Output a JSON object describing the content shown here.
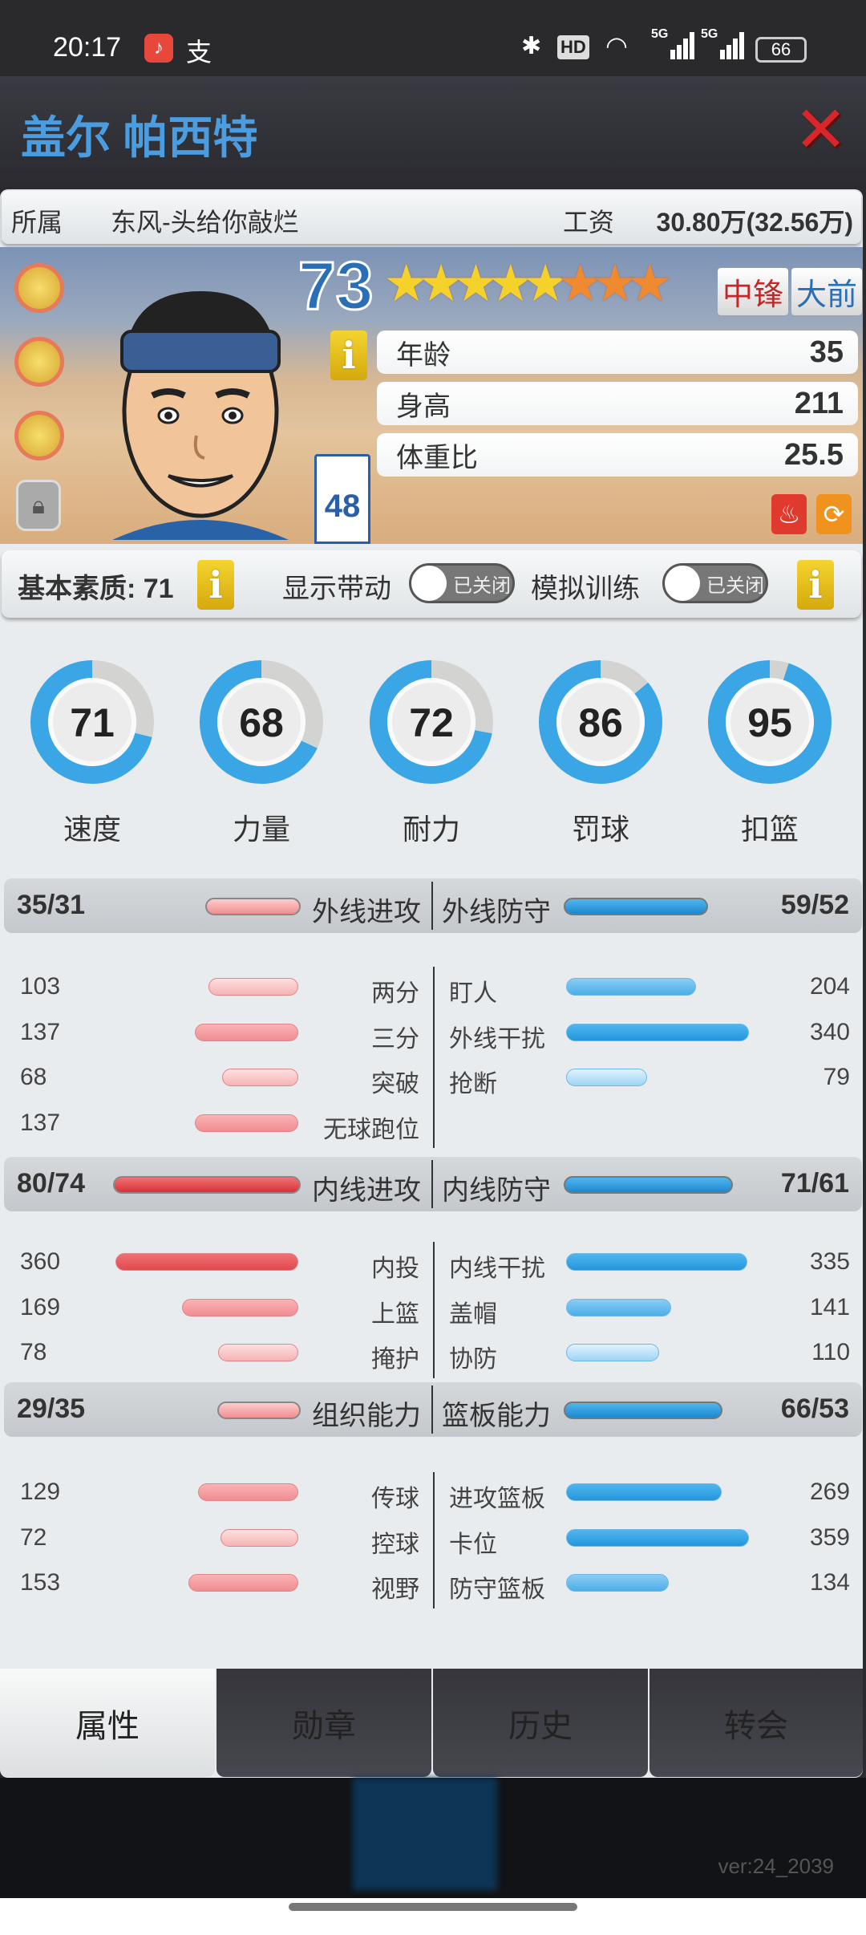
{
  "status_bar": {
    "time": "20:17",
    "battery": "66",
    "network1": "5G",
    "network2": "5G",
    "hd": "HD"
  },
  "header": {
    "title": "盖尔 帕西特",
    "close": "close-icon"
  },
  "info": {
    "team_label": "所属",
    "team": "东风-头给你敲烂",
    "salary_label": "工资",
    "salary": "30.80万(32.56万)"
  },
  "player": {
    "rating": "73",
    "stars": {
      "gold": 5,
      "orange": 3
    },
    "positions": [
      {
        "label": "中锋",
        "color": "#c0282a"
      },
      {
        "label": "大前",
        "color": "#2a6fb6"
      }
    ],
    "jersey_number": "48",
    "attributes": [
      {
        "label": "年龄",
        "value": "35"
      },
      {
        "label": "身高",
        "value": "211"
      },
      {
        "label": "体重比",
        "value": "25.5"
      }
    ]
  },
  "basic": {
    "label": "基本素质: 71",
    "show_drive_label": "显示带动",
    "show_drive_state": "已关闭",
    "sim_training_label": "模拟训练",
    "sim_training_state": "已关闭",
    "info_icon": "i"
  },
  "circles": [
    {
      "label": "速度",
      "value": 71
    },
    {
      "label": "力量",
      "value": 68
    },
    {
      "label": "耐力",
      "value": 72
    },
    {
      "label": "罚球",
      "value": 86
    },
    {
      "label": "扣篮",
      "value": 95
    }
  ],
  "sections": [
    {
      "left": {
        "title": "外线进攻",
        "value": "35/31",
        "level": 35
      },
      "right": {
        "title": "外线防守",
        "value": "59/52",
        "level": 59
      },
      "left_rows": [
        {
          "label": "两分",
          "value": 103
        },
        {
          "label": "三分",
          "value": 137
        },
        {
          "label": "突破",
          "value": 68
        },
        {
          "label": "无球跑位",
          "value": 137
        }
      ],
      "right_rows": [
        {
          "label": "盯人",
          "value": 204
        },
        {
          "label": "外线干扰",
          "value": 340
        },
        {
          "label": "抢断",
          "value": 79
        }
      ]
    },
    {
      "left": {
        "title": "内线进攻",
        "value": "80/74",
        "level": 80
      },
      "right": {
        "title": "内线防守",
        "value": "71/61",
        "level": 71
      },
      "left_rows": [
        {
          "label": "内投",
          "value": 360
        },
        {
          "label": "上篮",
          "value": 169
        },
        {
          "label": "掩护",
          "value": 78
        }
      ],
      "right_rows": [
        {
          "label": "内线干扰",
          "value": 335
        },
        {
          "label": "盖帽",
          "value": 141
        },
        {
          "label": "协防",
          "value": 110
        }
      ]
    },
    {
      "left": {
        "title": "组织能力",
        "value": "29/35",
        "level": 29
      },
      "right": {
        "title": "篮板能力",
        "value": "66/53",
        "level": 66
      },
      "left_rows": [
        {
          "label": "传球",
          "value": 129
        },
        {
          "label": "控球",
          "value": 72
        },
        {
          "label": "视野",
          "value": 153
        }
      ],
      "right_rows": [
        {
          "label": "进攻篮板",
          "value": 269
        },
        {
          "label": "卡位",
          "value": 359
        },
        {
          "label": "防守篮板",
          "value": 134
        }
      ]
    }
  ],
  "tabs": [
    {
      "label": "属性",
      "active": true
    },
    {
      "label": "勋章",
      "active": false
    },
    {
      "label": "历史",
      "active": false
    },
    {
      "label": "转会",
      "active": false
    }
  ],
  "version": "ver:24_2039",
  "colors": {
    "title_blue": "#4a9de0",
    "ring_blue": "#3aa6e6",
    "bar_red": "#e04a4e",
    "bar_pink": "#f4a5a8",
    "bar_blue": "#2596dc",
    "bar_lightblue": "#9fd4f4"
  }
}
